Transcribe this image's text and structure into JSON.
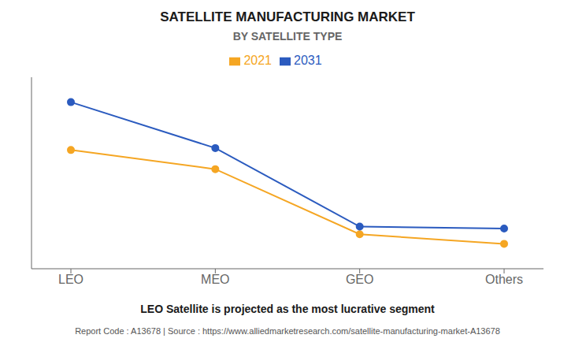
{
  "chart_data": {
    "type": "line",
    "title": "SATELLITE MANUFACTURING MARKET",
    "subtitle": "BY SATELLITE TYPE",
    "categories": [
      "LEO",
      "MEO",
      "GEO",
      "Others"
    ],
    "series": [
      {
        "name": "2021",
        "color": "#F5A623",
        "values": [
          0.62,
          0.52,
          0.18,
          0.13
        ],
        "marker": "circle"
      },
      {
        "name": "2031",
        "color": "#2B5BBF",
        "values": [
          0.87,
          0.63,
          0.22,
          0.21
        ],
        "marker": "circle"
      }
    ],
    "ylim": [
      0,
      1
    ],
    "yticks": [],
    "grid": false,
    "legend": "top",
    "tick_labels": "x",
    "annotations": [
      "LEO Satellite is projected as the most lucrative segment",
      "Report Code : A13678  |  Source : https://www.alliedmarketresearch.com/satellite-manufacturing-market-A13678"
    ]
  }
}
